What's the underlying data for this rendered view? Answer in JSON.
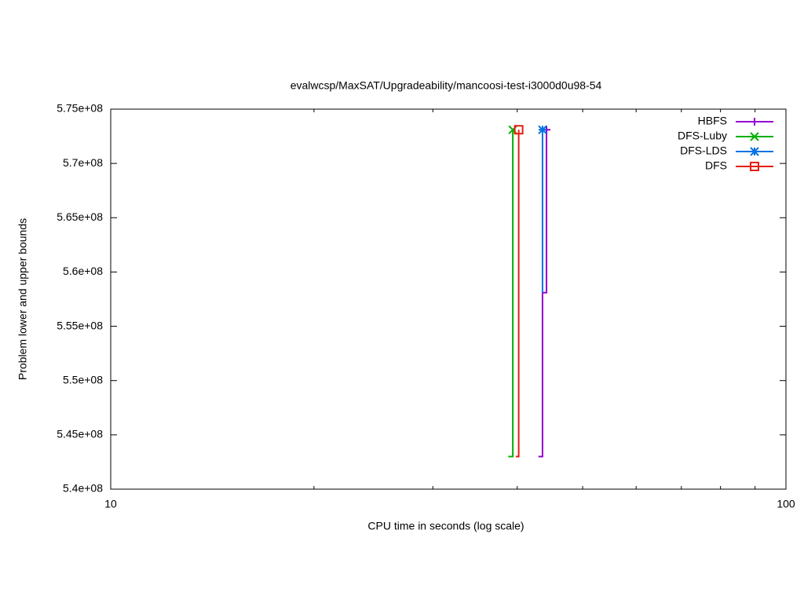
{
  "chart_data": {
    "type": "line",
    "title": "evalwcsp/MaxSAT/Upgradeability/mancoosi-test-i3000d0u98-54",
    "x_label": "CPU time in seconds (log scale)",
    "y_label": "Problem lower and upper bounds",
    "xscale": "log",
    "xlim": [
      10,
      100
    ],
    "xticks": [
      10,
      100
    ],
    "xminorticks": [
      20,
      30,
      40,
      50,
      60,
      70,
      80,
      90
    ],
    "ylim": [
      540000000,
      575000000
    ],
    "yticks": [
      {
        "value": 540000000,
        "label": "5.4e+08"
      },
      {
        "value": 545000000,
        "label": "5.45e+08"
      },
      {
        "value": 550000000,
        "label": "5.5e+08"
      },
      {
        "value": 555000000,
        "label": "5.55e+08"
      },
      {
        "value": 560000000,
        "label": "5.6e+08"
      },
      {
        "value": 565000000,
        "label": "5.65e+08"
      },
      {
        "value": 570000000,
        "label": "5.7e+08"
      },
      {
        "value": 575000000,
        "label": "5.75e+08"
      }
    ],
    "grid": false,
    "legend": "top-right",
    "series": [
      {
        "name": "HBFS",
        "color": "#9400d3",
        "marker": "plus",
        "x": [
          43.0,
          43.6,
          43.6,
          44.2,
          44.2
        ],
        "values": [
          543000000,
          543000000,
          558100000,
          558100000,
          573100000
        ]
      },
      {
        "name": "DFS-Luby",
        "color": "#00b000",
        "marker": "cross",
        "x": [
          38.8,
          39.4,
          39.4
        ],
        "values": [
          543000000,
          543000000,
          573100000
        ]
      },
      {
        "name": "DFS-LDS",
        "color": "#0072e6",
        "marker": "star",
        "x": [
          43.6,
          43.6
        ],
        "values": [
          558100000,
          573100000
        ]
      },
      {
        "name": "DFS",
        "color": "#e51e10",
        "marker": "square",
        "x": [
          39.8,
          40.2,
          40.2
        ],
        "values": [
          543000000,
          543000000,
          573100000
        ]
      }
    ]
  }
}
